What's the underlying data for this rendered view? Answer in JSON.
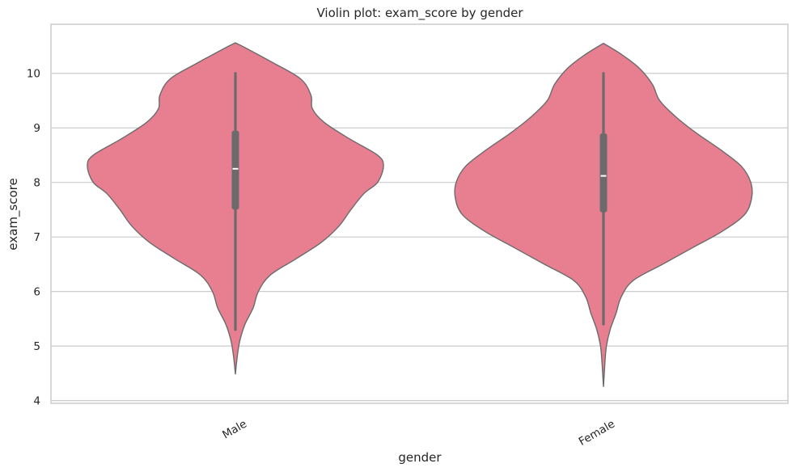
{
  "chart_data": {
    "type": "violin",
    "title": "Violin plot: exam_score by gender",
    "xlabel": "gender",
    "ylabel": "exam_score",
    "ylim": [
      3.95,
      10.9
    ],
    "yticks": [
      4,
      5,
      6,
      7,
      8,
      9,
      10
    ],
    "grid": "horizontal",
    "categories": [
      "Male",
      "Female"
    ],
    "colors": {
      "violin_fill": "#e77f90",
      "violin_edge": "#6b6b6b",
      "box": "#6b6b6b",
      "median": "#ffffff",
      "grid": "#cccccc",
      "frame": "#cccccc",
      "text": "#262626"
    },
    "series": [
      {
        "category": "Male",
        "min": 5.3,
        "q1": 7.5,
        "median": 8.25,
        "q3": 8.95,
        "max": 10.0,
        "density": [
          [
            4.48,
            0.0
          ],
          [
            4.8,
            0.012
          ],
          [
            5.1,
            0.03
          ],
          [
            5.4,
            0.065
          ],
          [
            5.7,
            0.12
          ],
          [
            6.0,
            0.155
          ],
          [
            6.3,
            0.235
          ],
          [
            6.6,
            0.41
          ],
          [
            6.9,
            0.58
          ],
          [
            7.2,
            0.7
          ],
          [
            7.5,
            0.78
          ],
          [
            7.8,
            0.87
          ],
          [
            8.0,
            0.96
          ],
          [
            8.3,
            1.0
          ],
          [
            8.5,
            0.96
          ],
          [
            8.8,
            0.77
          ],
          [
            9.1,
            0.6
          ],
          [
            9.35,
            0.52
          ],
          [
            9.6,
            0.51
          ],
          [
            9.9,
            0.44
          ],
          [
            10.2,
            0.25
          ],
          [
            10.45,
            0.08
          ],
          [
            10.56,
            0.0
          ]
        ]
      },
      {
        "category": "Female",
        "min": 5.4,
        "q1": 7.45,
        "median": 8.12,
        "q3": 8.9,
        "max": 10.0,
        "density": [
          [
            4.25,
            0.0
          ],
          [
            4.7,
            0.01
          ],
          [
            5.0,
            0.02
          ],
          [
            5.3,
            0.045
          ],
          [
            5.6,
            0.085
          ],
          [
            5.9,
            0.12
          ],
          [
            6.2,
            0.2
          ],
          [
            6.5,
            0.4
          ],
          [
            6.8,
            0.6
          ],
          [
            7.1,
            0.8
          ],
          [
            7.4,
            0.95
          ],
          [
            7.7,
            1.0
          ],
          [
            8.0,
            0.995
          ],
          [
            8.3,
            0.93
          ],
          [
            8.6,
            0.79
          ],
          [
            8.9,
            0.63
          ],
          [
            9.2,
            0.49
          ],
          [
            9.5,
            0.38
          ],
          [
            9.8,
            0.33
          ],
          [
            10.1,
            0.24
          ],
          [
            10.35,
            0.12
          ],
          [
            10.55,
            0.0
          ]
        ]
      }
    ]
  }
}
